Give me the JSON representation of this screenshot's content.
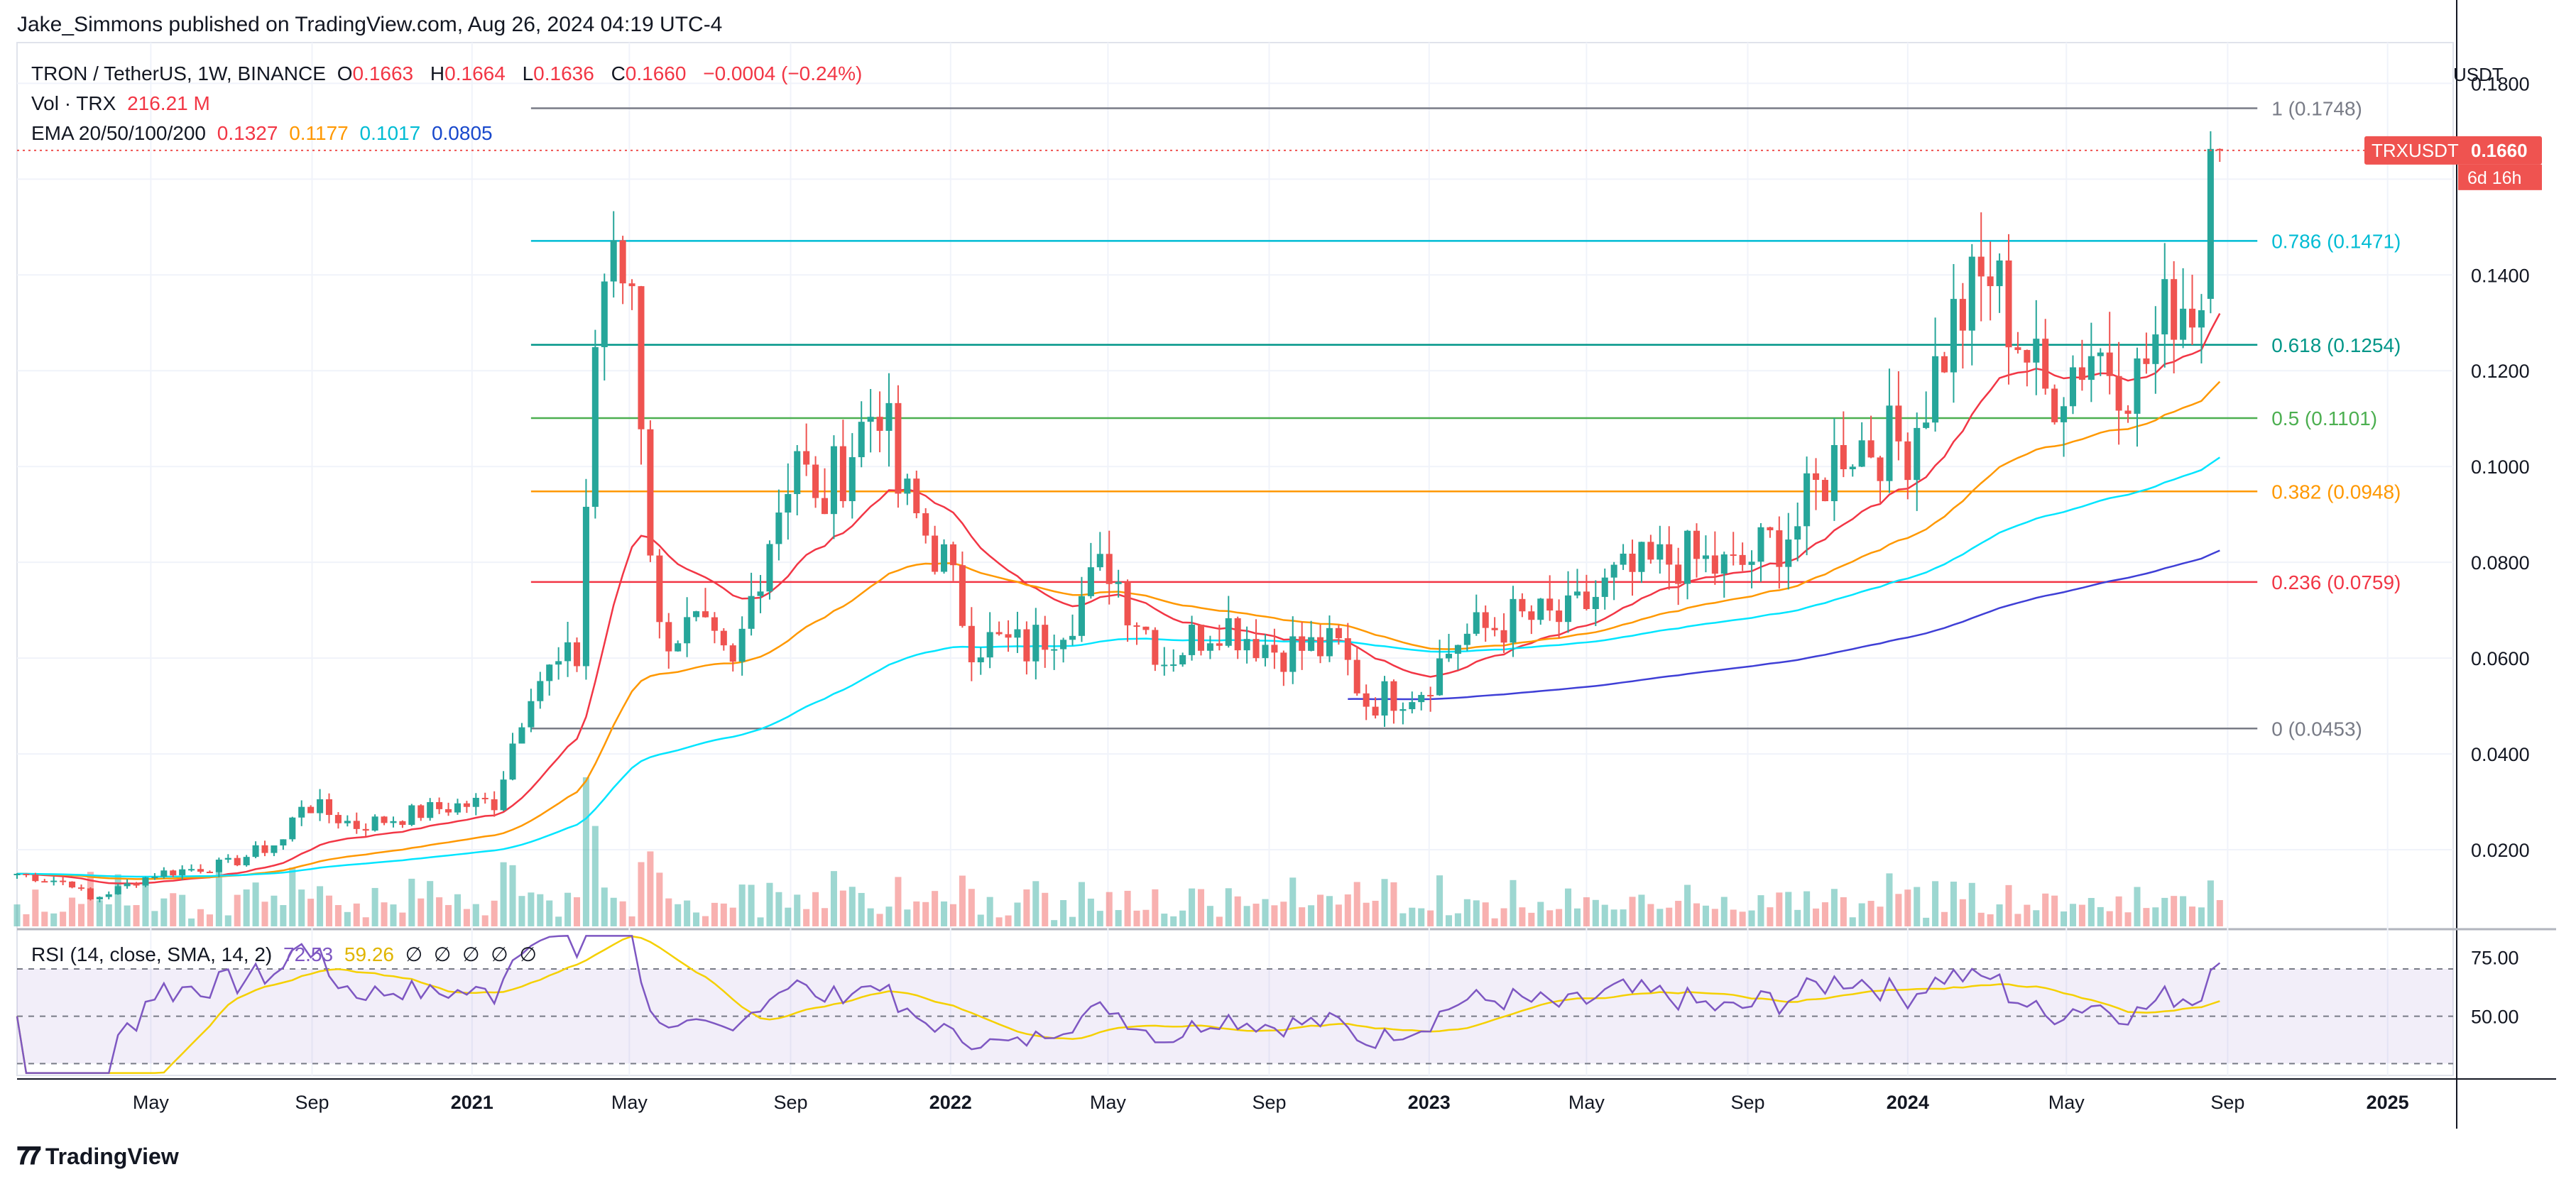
{
  "header": {
    "published": "Jake_Simmons published on TradingView.com, Aug 26, 2024 04:19 UTC-4"
  },
  "legend": {
    "symbol": "TRON / TetherUS, 1W, BINANCE",
    "o_label": "O",
    "o_value": "0.1663",
    "h_label": "H",
    "h_value": "0.1664",
    "l_label": "L",
    "l_value": "0.1636",
    "c_label": "C",
    "c_value": "0.1660",
    "change": "−0.0004 (−0.24%)",
    "vol_label": "Vol · TRX",
    "vol_value": "216.21 M",
    "ema_label": "EMA 20/50/100/200",
    "ema20": "0.1327",
    "ema50": "0.1177",
    "ema100": "0.1017",
    "ema200": "0.0805",
    "rsi_label": "RSI (14, close, SMA, 14, 2)",
    "rsi_value": "72.53",
    "rsi_sma": "59.26",
    "rsi_na": [
      "∅",
      "∅",
      "∅",
      "∅",
      "∅"
    ]
  },
  "price_tag": {
    "symbol": "TRXUSDT",
    "price": "0.1660",
    "countdown": "6d 16h"
  },
  "footer": {
    "brand": "TradingView"
  },
  "colors": {
    "up": "#26a69a",
    "down": "#ef5350",
    "ema20": "#f23645",
    "ema50": "#ff9800",
    "ema100": "#00e5ff",
    "ema200": "#3f3fd6",
    "rsi": "#7e57c2",
    "rsi_sma": "#f5d000"
  },
  "chart_data": {
    "type": "candlestick",
    "unit": "USDT",
    "price_axis": {
      "range": [
        0.004,
        0.18
      ],
      "ticks": [
        "0.1800",
        "0.1600",
        "0.1400",
        "0.1200",
        "0.1000",
        "0.0800",
        "0.0600",
        "0.0400",
        "0.0200"
      ]
    },
    "time_axis": {
      "range": [
        "2020-01-20",
        "2025-02-20"
      ],
      "ticks": [
        "May",
        "Sep",
        "2021",
        "May",
        "Sep",
        "2022",
        "May",
        "Sep",
        "2023",
        "May",
        "Sep",
        "2024",
        "May",
        "Sep",
        "2025"
      ]
    },
    "fib_levels": [
      {
        "label": "1 (0.1748)",
        "value": 0.1748,
        "color": "#787b86"
      },
      {
        "label": "0.786 (0.1471)",
        "value": 0.1471,
        "color": "#00bcd4"
      },
      {
        "label": "0.618 (0.1254)",
        "value": 0.1254,
        "color": "#009688"
      },
      {
        "label": "0.5 (0.1101)",
        "value": 0.1101,
        "color": "#4caf50"
      },
      {
        "label": "0.382 (0.0948)",
        "value": 0.0948,
        "color": "#ff9800"
      },
      {
        "label": "0.236 (0.0759)",
        "value": 0.0759,
        "color": "#f23645"
      },
      {
        "label": "0 (0.0453)",
        "value": 0.0453,
        "color": "#787b86"
      }
    ],
    "rsi_axis": {
      "ticks": [
        "75.00",
        "50.00"
      ],
      "band": [
        30,
        70
      ]
    },
    "keypoints": [
      {
        "date": "2020-01-20",
        "close": 0.015
      },
      {
        "date": "2020-03-02",
        "close": 0.013
      },
      {
        "date": "2020-03-16",
        "close": 0.0095
      },
      {
        "date": "2020-05-04",
        "close": 0.015
      },
      {
        "date": "2020-06-29",
        "close": 0.017
      },
      {
        "date": "2020-08-10",
        "close": 0.022
      },
      {
        "date": "2020-08-24",
        "close": 0.03
      },
      {
        "date": "2020-10-05",
        "close": 0.025
      },
      {
        "date": "2020-12-14",
        "close": 0.029
      },
      {
        "date": "2021-01-18",
        "close": 0.03
      },
      {
        "date": "2021-02-15",
        "close": 0.055
      },
      {
        "date": "2021-03-22",
        "close": 0.06
      },
      {
        "date": "2021-04-05",
        "close": 0.125
      },
      {
        "date": "2021-04-12",
        "close": 0.14
      },
      {
        "date": "2021-05-03",
        "close": 0.139
      },
      {
        "date": "2021-05-17",
        "close": 0.085
      },
      {
        "date": "2021-05-24",
        "close": 0.065
      },
      {
        "date": "2021-06-21",
        "close": 0.066
      },
      {
        "date": "2021-07-19",
        "close": 0.057
      },
      {
        "date": "2021-08-09",
        "close": 0.08
      },
      {
        "date": "2021-09-06",
        "close": 0.105
      },
      {
        "date": "2021-09-20",
        "close": 0.09
      },
      {
        "date": "2021-11-08",
        "close": 0.115
      },
      {
        "date": "2021-11-22",
        "close": 0.095
      },
      {
        "date": "2021-12-27",
        "close": 0.08
      },
      {
        "date": "2022-01-17",
        "close": 0.064
      },
      {
        "date": "2022-02-28",
        "close": 0.062
      },
      {
        "date": "2022-04-04",
        "close": 0.07
      },
      {
        "date": "2022-05-02",
        "close": 0.08
      },
      {
        "date": "2022-05-16",
        "close": 0.072
      },
      {
        "date": "2022-06-13",
        "close": 0.06
      },
      {
        "date": "2022-07-25",
        "close": 0.068
      },
      {
        "date": "2022-09-05",
        "close": 0.062
      },
      {
        "date": "2022-10-24",
        "close": 0.062
      },
      {
        "date": "2022-11-14",
        "close": 0.051
      },
      {
        "date": "2022-12-26",
        "close": 0.054
      },
      {
        "date": "2023-01-23",
        "close": 0.064
      },
      {
        "date": "2023-03-06",
        "close": 0.068
      },
      {
        "date": "2023-04-17",
        "close": 0.068
      },
      {
        "date": "2023-05-22",
        "close": 0.076
      },
      {
        "date": "2023-07-10",
        "close": 0.081
      },
      {
        "date": "2023-08-21",
        "close": 0.078
      },
      {
        "date": "2023-10-09",
        "close": 0.088
      },
      {
        "date": "2023-11-13",
        "close": 0.105
      },
      {
        "date": "2024-01-01",
        "close": 0.105
      },
      {
        "date": "2024-02-05",
        "close": 0.13
      },
      {
        "date": "2024-03-04",
        "close": 0.14
      },
      {
        "date": "2024-04-15",
        "close": 0.115
      },
      {
        "date": "2024-05-20",
        "close": 0.125
      },
      {
        "date": "2024-06-24",
        "close": 0.118
      },
      {
        "date": "2024-07-22",
        "close": 0.135
      },
      {
        "date": "2024-08-12",
        "close": 0.135
      },
      {
        "date": "2024-08-19",
        "close": 0.1663
      },
      {
        "date": "2024-08-26",
        "close": 0.166
      }
    ]
  }
}
